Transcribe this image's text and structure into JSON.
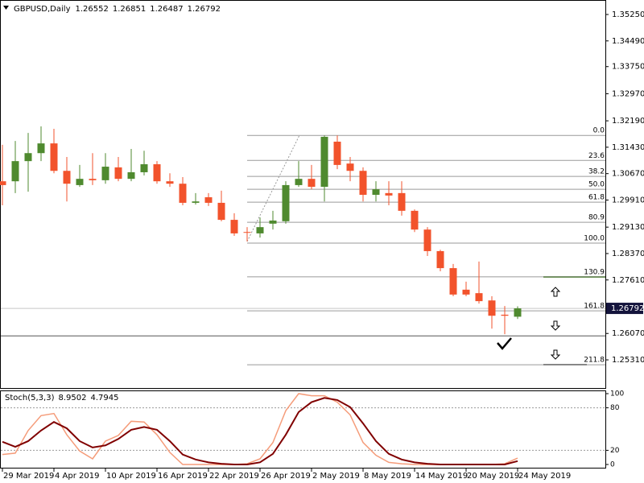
{
  "chart_data": [
    {
      "type": "candlestick",
      "title": "GBPUSD,Daily",
      "categories": [
        "29 Mar 2019",
        null,
        null,
        null,
        "4 Apr 2019",
        null,
        null,
        null,
        "10 Apr 2019",
        null,
        null,
        null,
        "16 Apr 2019",
        null,
        null,
        null,
        "22 Apr 2019",
        null,
        null,
        null,
        "26 Apr 2019",
        null,
        null,
        null,
        "2 May 2019",
        null,
        null,
        null,
        "8 May 2019",
        null,
        null,
        null,
        "14 May 2019",
        null,
        null,
        null,
        "20 May 2019",
        null,
        null,
        null,
        "24 May 2019"
      ],
      "open": [
        1.3045,
        1.3045,
        1.3103,
        1.3126,
        1.3154,
        1.3075,
        1.3034,
        1.3052,
        1.3048,
        1.3085,
        1.3052,
        1.3071,
        1.3094,
        1.3045,
        1.3038,
        1.2983,
        1.2999,
        1.2983,
        1.2934,
        1.2899,
        1.2895,
        1.2923,
        1.293,
        1.3034,
        1.3052,
        1.3029,
        1.3159,
        1.3096,
        1.3075,
        1.3006,
        1.3011,
        1.3011,
        1.296,
        1.2906,
        1.2844,
        1.2795,
        1.2733,
        1.2723,
        1.2702,
        1.2661,
        1.26552
      ],
      "high": [
        1.315,
        1.3161,
        1.3184,
        1.3203,
        1.3196,
        1.3115,
        1.3092,
        1.3126,
        1.3126,
        1.3115,
        1.3138,
        1.3133,
        1.3103,
        1.3068,
        1.3057,
        1.3011,
        1.3011,
        1.3018,
        1.2953,
        1.2913,
        1.2941,
        1.296,
        1.3045,
        1.3103,
        1.3092,
        1.3177,
        1.3177,
        1.3115,
        1.3085,
        1.3045,
        1.3045,
        1.3045,
        1.2964,
        1.2913,
        1.2848,
        1.2807,
        1.2756,
        1.2814,
        1.2714,
        1.2686,
        1.26851
      ],
      "low": [
        1.2976,
        1.3011,
        1.3015,
        1.3103,
        1.3068,
        1.2987,
        1.3029,
        1.3034,
        1.3038,
        1.3045,
        1.3045,
        1.3062,
        1.3038,
        1.3029,
        1.2976,
        1.2978,
        1.2974,
        1.293,
        1.2888,
        1.2872,
        1.2883,
        1.2906,
        1.2923,
        1.3029,
        1.3022,
        1.2987,
        1.308,
        1.3045,
        1.2987,
        1.2987,
        1.2976,
        1.2946,
        1.2899,
        1.283,
        1.2786,
        1.2714,
        1.2714,
        1.2693,
        1.2621,
        1.2605,
        1.26487
      ],
      "close": [
        1.3034,
        1.3103,
        1.3126,
        1.3154,
        1.3075,
        1.3038,
        1.3052,
        1.3048,
        1.3087,
        1.3052,
        1.3071,
        1.3094,
        1.3045,
        1.3038,
        1.2983,
        1.2987,
        1.2983,
        1.2934,
        1.2895,
        1.2897,
        1.2913,
        1.2932,
        1.3034,
        1.3052,
        1.3029,
        1.3173,
        1.3092,
        1.3075,
        1.3006,
        1.3022,
        1.3004,
        1.296,
        1.2906,
        1.2844,
        1.2795,
        1.2719,
        1.2719,
        1.27,
        1.2658,
        1.2658,
        1.26792
      ],
      "up_color": "#4f8a2f",
      "down_color": "#f2532c",
      "ylim": [
        1.245,
        1.35667
      ],
      "yticks": [
        {
          "value": 1.3525,
          "label": "1.35250"
        },
        {
          "value": 1.3449,
          "label": "1.34490"
        },
        {
          "value": 1.3375,
          "label": "1.33750"
        },
        {
          "value": 1.3297,
          "label": "1.32970"
        },
        {
          "value": 1.3219,
          "label": "1.32190"
        },
        {
          "value": 1.3143,
          "label": "1.31430"
        },
        {
          "value": 1.3067,
          "label": "1.30670"
        },
        {
          "value": 1.2991,
          "label": "1.29910"
        },
        {
          "value": 1.2913,
          "label": "1.29130"
        },
        {
          "value": 1.2837,
          "label": "1.28370"
        },
        {
          "value": 1.2761,
          "label": "1.27610"
        },
        {
          "value": 1.2607,
          "label": "1.26070"
        },
        {
          "value": 1.2531,
          "label": "1.25310"
        }
      ],
      "fib_levels": [
        {
          "label": "0.0",
          "price": 1.3177
        },
        {
          "label": "23.6",
          "price": 1.3105
        },
        {
          "label": "38.2",
          "price": 1.3059
        },
        {
          "label": "50.0",
          "price": 1.3022
        },
        {
          "label": "61.8",
          "price": 1.2985
        },
        {
          "label": "80.9",
          "price": 1.2927
        },
        {
          "label": "100.0",
          "price": 1.2867
        },
        {
          "label": "130.9",
          "price": 1.277
        },
        {
          "label": "161.8",
          "price": 1.2672
        },
        {
          "label": "211.8",
          "price": 1.2517
        }
      ],
      "fib_color": "#9a9a9a",
      "hlines": [
        1.26
      ]
    },
    {
      "type": "line",
      "title": "Stoch(5,3,3)",
      "series": [
        {
          "color": "#f59c7a",
          "values": [
            14,
            16,
            48,
            69,
            72,
            42,
            19,
            8,
            33,
            41,
            61,
            60,
            42,
            17,
            0,
            0,
            0,
            0,
            0,
            1,
            8,
            31,
            76,
            100,
            97,
            97,
            88,
            70,
            31,
            13,
            3,
            1,
            0,
            0,
            0,
            0,
            0,
            0,
            0,
            1,
            8.9502
          ]
        },
        {
          "color": "#800000",
          "values": [
            32,
            25,
            33,
            48,
            60,
            51,
            33,
            24,
            27,
            36,
            49,
            53,
            49,
            33,
            14,
            7,
            3,
            1,
            0,
            0,
            3,
            15,
            42,
            74,
            88,
            94,
            91,
            81,
            58,
            33,
            15,
            7,
            3,
            1,
            0,
            0,
            0,
            0,
            0,
            0,
            4.7945
          ]
        }
      ],
      "ylim": [
        0,
        100
      ],
      "yticks": [
        100,
        80,
        20,
        0
      ],
      "levels": [
        80,
        20
      ]
    }
  ]
}
